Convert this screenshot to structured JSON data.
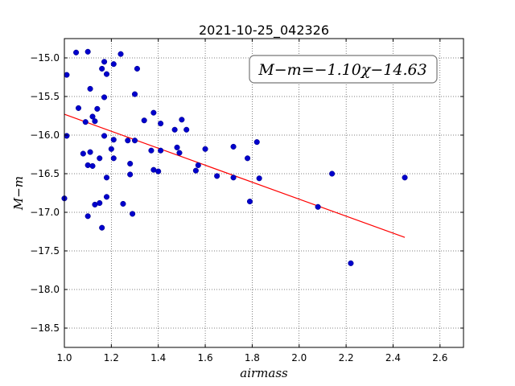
{
  "chart_data": {
    "type": "scatter",
    "title": "2021-10-25_042326",
    "xlabel": "airmass",
    "ylabel": "M−m",
    "xlim": [
      1.0,
      2.7
    ],
    "ylim": [
      -18.75,
      -14.75
    ],
    "y_inverted": true,
    "xticks": [
      "1.0",
      "1.2",
      "1.4",
      "1.6",
      "1.8",
      "2.0",
      "2.2",
      "2.4",
      "2.6"
    ],
    "yticks": [
      "-15.0",
      "-15.5",
      "-16.0",
      "-16.5",
      "-17.0",
      "-17.5",
      "-18.0",
      "-18.5"
    ],
    "grid": true,
    "annotation": "M−m=−1.10χ−14.63",
    "fit": {
      "slope": -1.1,
      "intercept": -14.63,
      "x_range": [
        1.0,
        2.45
      ],
      "color": "#ff0000"
    },
    "point_color": "#0000cc",
    "series": [
      {
        "points": [
          [
            1.0,
            -16.82
          ],
          [
            1.01,
            -16.01
          ],
          [
            1.01,
            -15.22
          ],
          [
            1.05,
            -14.93
          ],
          [
            1.06,
            -15.65
          ],
          [
            1.08,
            -16.24
          ],
          [
            1.09,
            -15.83
          ],
          [
            1.1,
            -17.05
          ],
          [
            1.1,
            -16.39
          ],
          [
            1.1,
            -14.92
          ],
          [
            1.11,
            -16.22
          ],
          [
            1.11,
            -15.4
          ],
          [
            1.12,
            -16.4
          ],
          [
            1.12,
            -15.76
          ],
          [
            1.13,
            -16.9
          ],
          [
            1.13,
            -15.82
          ],
          [
            1.14,
            -15.66
          ],
          [
            1.15,
            -16.88
          ],
          [
            1.15,
            -16.3
          ],
          [
            1.16,
            -15.14
          ],
          [
            1.16,
            -17.2
          ],
          [
            1.17,
            -15.51
          ],
          [
            1.17,
            -16.01
          ],
          [
            1.17,
            -15.05
          ],
          [
            1.18,
            -16.8
          ],
          [
            1.18,
            -16.55
          ],
          [
            1.18,
            -15.21
          ],
          [
            1.2,
            -16.18
          ],
          [
            1.21,
            -16.06
          ],
          [
            1.21,
            -15.08
          ],
          [
            1.21,
            -16.3
          ],
          [
            1.24,
            -14.95
          ],
          [
            1.25,
            -16.89
          ],
          [
            1.27,
            -16.07
          ],
          [
            1.28,
            -16.37
          ],
          [
            1.28,
            -16.51
          ],
          [
            1.29,
            -17.02
          ],
          [
            1.3,
            -15.47
          ],
          [
            1.3,
            -16.07
          ],
          [
            1.31,
            -15.14
          ],
          [
            1.34,
            -15.81
          ],
          [
            1.37,
            -16.2
          ],
          [
            1.38,
            -15.71
          ],
          [
            1.38,
            -16.45
          ],
          [
            1.4,
            -16.47
          ],
          [
            1.41,
            -15.85
          ],
          [
            1.41,
            -16.2
          ],
          [
            1.47,
            -15.93
          ],
          [
            1.48,
            -16.16
          ],
          [
            1.49,
            -16.23
          ],
          [
            1.5,
            -15.8
          ],
          [
            1.52,
            -15.93
          ],
          [
            1.56,
            -16.46
          ],
          [
            1.57,
            -16.39
          ],
          [
            1.6,
            -16.18
          ],
          [
            1.65,
            -16.53
          ],
          [
            1.72,
            -16.15
          ],
          [
            1.72,
            -16.55
          ],
          [
            1.78,
            -16.3
          ],
          [
            1.79,
            -16.86
          ],
          [
            1.82,
            -16.09
          ],
          [
            1.83,
            -16.56
          ],
          [
            2.08,
            -16.93
          ],
          [
            2.14,
            -16.5
          ],
          [
            2.22,
            -17.66
          ],
          [
            2.45,
            -16.55
          ]
        ]
      }
    ]
  }
}
